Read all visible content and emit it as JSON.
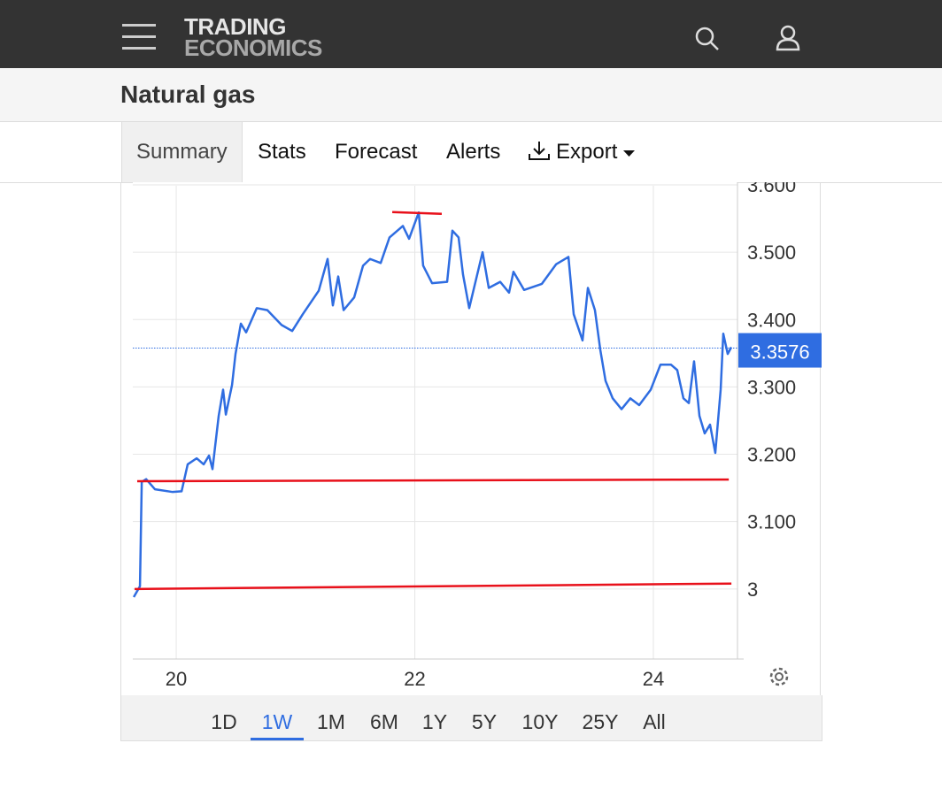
{
  "header": {
    "logo_top": "TRADING",
    "logo_bottom": "ECONOMICS"
  },
  "title": "Natural gas",
  "tabs": [
    "Summary",
    "Stats",
    "Forecast",
    "Alerts",
    "Export"
  ],
  "active_tab_index": 0,
  "chart": {
    "type": "line",
    "series": [
      {
        "color": "#2f6de1",
        "x": [
          19.644,
          19.696,
          19.711,
          19.748,
          19.822,
          19.97,
          20.045,
          20.096,
          20.171,
          20.23,
          20.275,
          20.304,
          20.356,
          20.393,
          20.416,
          20.468,
          20.497,
          20.542,
          20.586,
          20.675,
          20.764,
          20.883,
          20.972,
          21.061,
          21.195,
          21.269,
          21.313,
          21.358,
          21.403,
          21.492,
          21.566,
          21.625,
          21.714,
          21.788,
          21.9,
          21.952,
          22.033,
          22.07,
          22.145,
          22.271,
          22.315,
          22.367,
          22.404,
          22.456,
          22.568,
          22.62,
          22.716,
          22.79,
          22.827,
          22.916,
          23.065,
          23.184,
          23.288,
          23.332,
          23.406,
          23.451,
          23.51,
          23.555,
          23.599,
          23.659,
          23.733,
          23.807,
          23.881,
          23.978,
          24.059,
          24.148,
          24.2,
          24.252,
          24.297,
          24.341,
          24.386,
          24.43,
          24.475,
          24.519,
          24.564,
          24.586,
          24.623,
          24.653
        ],
        "values": [
          2.988,
          3.004,
          3.159,
          3.163,
          3.148,
          3.144,
          3.145,
          3.185,
          3.194,
          3.185,
          3.198,
          3.178,
          3.257,
          3.296,
          3.259,
          3.303,
          3.349,
          3.394,
          3.381,
          3.417,
          3.414,
          3.392,
          3.383,
          3.408,
          3.443,
          3.49,
          3.421,
          3.464,
          3.414,
          3.433,
          3.48,
          3.49,
          3.484,
          3.522,
          3.539,
          3.52,
          3.559,
          3.48,
          3.454,
          3.456,
          3.532,
          3.522,
          3.467,
          3.417,
          3.5,
          3.447,
          3.456,
          3.44,
          3.471,
          3.444,
          3.453,
          3.482,
          3.493,
          3.408,
          3.369,
          3.447,
          3.414,
          3.355,
          3.309,
          3.283,
          3.267,
          3.283,
          3.273,
          3.296,
          3.333,
          3.333,
          3.325,
          3.283,
          3.276,
          3.338,
          3.257,
          3.231,
          3.244,
          3.202,
          3.296,
          3.379,
          3.349,
          3.359
        ]
      }
    ],
    "last_value": 3.3576,
    "last_color": "#2f6de1",
    "xlim": [
      19.636,
      24.705
    ],
    "xticks": [
      20,
      22,
      24
    ],
    "ylim": [
      2.896,
      3.6
    ],
    "yticks": [
      {
        "value": 3,
        "label": "3"
      },
      {
        "value": 3.1,
        "label": "3.100"
      },
      {
        "value": 3.2,
        "label": "3.200"
      },
      {
        "value": 3.3,
        "label": "3.300"
      },
      {
        "value": 3.4,
        "label": "3.400"
      },
      {
        "value": 3.5,
        "label": "3.500"
      },
      {
        "value": 3.6,
        "label": "3.600"
      }
    ],
    "grid": true,
    "annotations": [
      {
        "color": "#e8101a",
        "x1": 19.673,
        "y1": 3.16,
        "x2": 24.632,
        "y2": 3.1625
      },
      {
        "color": "#e8101a",
        "x1": 19.651,
        "y1": 3.0,
        "x2": 24.654,
        "y2": 3.008
      },
      {
        "color": "#e8101a",
        "x1": 21.811,
        "y1": 3.5596,
        "x2": 22.226,
        "y2": 3.557
      }
    ]
  },
  "ranges": [
    "1D",
    "1W",
    "1M",
    "6M",
    "1Y",
    "5Y",
    "10Y",
    "25Y",
    "All"
  ],
  "active_range_index": 1
}
